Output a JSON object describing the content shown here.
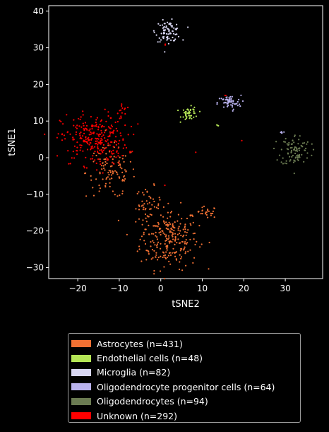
{
  "chart_data": {
    "type": "scatter",
    "title": "",
    "xlabel": "tSNE2",
    "ylabel": "tSNE1",
    "xlim": [
      -27,
      39
    ],
    "ylim": [
      -33,
      41.5
    ],
    "xticks": [
      -20,
      -10,
      0,
      10,
      20,
      30
    ],
    "yticks": [
      -30,
      -20,
      -10,
      0,
      10,
      20,
      30,
      40
    ],
    "grid": false,
    "legend_position": "bottom, below plot",
    "series": [
      {
        "name": "Astrocytes (n=431)",
        "color": "#f07033",
        "clusters": [
          {
            "cx": 2,
            "cy": -22,
            "sx": 3.5,
            "sy": 4.2,
            "n": 250
          },
          {
            "cx": -3,
            "cy": -13,
            "sx": 1.5,
            "sy": 2.5,
            "n": 45
          },
          {
            "cx": -12,
            "cy": -4,
            "sx": 3.0,
            "sy": 3.5,
            "n": 110
          },
          {
            "cx": 11,
            "cy": -15,
            "sx": 1.3,
            "sy": 0.8,
            "n": 26
          }
        ]
      },
      {
        "name": "Endothelial cells (n=48)",
        "color": "#b4e556",
        "clusters": [
          {
            "cx": 7,
            "cy": 12,
            "sx": 1.0,
            "sy": 0.9,
            "n": 45
          },
          {
            "cx": 13.5,
            "cy": 8.8,
            "sx": 0.3,
            "sy": 0.3,
            "n": 3
          }
        ]
      },
      {
        "name": "Microglia (n=82)",
        "color": "#d8d6f2",
        "clusters": [
          {
            "cx": 1.8,
            "cy": 34.5,
            "sx": 1.5,
            "sy": 1.4,
            "n": 82
          }
        ]
      },
      {
        "name": "Oligodendrocyte progenitor cells (n=64)",
        "color": "#b9b2ee",
        "clusters": [
          {
            "cx": 16.5,
            "cy": 15,
            "sx": 1.4,
            "sy": 1.0,
            "n": 58
          },
          {
            "cx": 29,
            "cy": 7,
            "sx": 0.4,
            "sy": 0.4,
            "n": 6
          }
        ]
      },
      {
        "name": "Oligodendrocytes (n=94)",
        "color": "#6b7b52",
        "clusters": [
          {
            "cx": 32.5,
            "cy": 2,
            "sx": 1.8,
            "sy": 2.2,
            "n": 94
          }
        ]
      },
      {
        "name": "Unknown (n=292)",
        "color": "#ff0000",
        "clusters": [
          {
            "cx": -16,
            "cy": 5,
            "sx": 4.0,
            "sy": 3.5,
            "n": 275
          },
          {
            "cx": -9,
            "cy": 14,
            "sx": 1.2,
            "sy": 1.0,
            "n": 10
          },
          {
            "cx": 16,
            "cy": 17,
            "sx": 0.3,
            "sy": 0.3,
            "n": 2
          },
          {
            "cx": 8.5,
            "cy": 1.3,
            "sx": 0.1,
            "sy": 0.1,
            "n": 1
          },
          {
            "cx": 19.5,
            "cy": 4.5,
            "sx": 0.1,
            "sy": 0.1,
            "n": 1
          },
          {
            "cx": 1,
            "cy": 31,
            "sx": 0.2,
            "sy": 0.2,
            "n": 2
          },
          {
            "cx": 1.3,
            "cy": -8,
            "sx": 0.2,
            "sy": 0.2,
            "n": 1
          }
        ]
      }
    ]
  }
}
